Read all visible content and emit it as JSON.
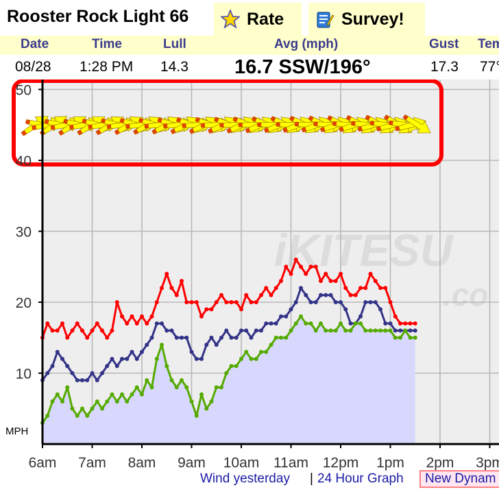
{
  "header": {
    "title": "Rooster Rock Light 66",
    "rate_label": "Rate",
    "survey_label": "Survey!",
    "star_icon": "star-icon",
    "survey_icon": "survey-icon"
  },
  "columns": {
    "date": "Date",
    "time": "Time",
    "lull": "Lull",
    "avg": "Avg (mph)",
    "gust": "Gust",
    "temp": "Tem"
  },
  "current": {
    "date": "08/28",
    "time": "1:28 PM",
    "lull": "14.3",
    "avg": "16.7 SSW/196°",
    "gust": "17.3",
    "temp": "77°"
  },
  "links": {
    "wind_yesterday": "Wind yesterday",
    "separator": "|",
    "graph_24h": "24 Hour Graph",
    "new_dynamic": "New Dynam"
  },
  "colors": {
    "gust": "#ff0000",
    "avg": "#333388",
    "lull": "#55aa00",
    "fill": "#d8d8ff",
    "arrow_fill": "#ffff00",
    "highlight_box": "#ff0000"
  },
  "chart_data": {
    "type": "line",
    "ylabel": "MPH",
    "ylim": [
      0,
      50
    ],
    "yticks": [
      10,
      20,
      30,
      40,
      50
    ],
    "ytick_labels": [
      "10",
      "20",
      "30",
      "40",
      "50"
    ],
    "xlim": [
      6,
      15
    ],
    "xticks": [
      6,
      7,
      8,
      9,
      10,
      11,
      12,
      13,
      14,
      15
    ],
    "xtick_labels": [
      "6am",
      "7am",
      "8am",
      "9am",
      "10am",
      "11am",
      "12pm",
      "1pm",
      "2pm",
      "3pm"
    ],
    "grid": true,
    "watermark": "iKITESURF.com",
    "direction_band_highlighted": true,
    "series": [
      {
        "key": "gust",
        "x": [
          6.0,
          6.1,
          6.2,
          6.3,
          6.4,
          6.5,
          6.6,
          6.7,
          6.8,
          6.9,
          7.0,
          7.1,
          7.2,
          7.3,
          7.4,
          7.5,
          7.6,
          7.7,
          7.8,
          7.9,
          8.0,
          8.1,
          8.2,
          8.3,
          8.4,
          8.5,
          8.6,
          8.7,
          8.8,
          8.9,
          9.0,
          9.1,
          9.2,
          9.3,
          9.4,
          9.5,
          9.6,
          9.7,
          9.8,
          9.9,
          10.0,
          10.1,
          10.2,
          10.3,
          10.4,
          10.5,
          10.6,
          10.7,
          10.8,
          10.9,
          11.0,
          11.1,
          11.2,
          11.3,
          11.4,
          11.5,
          11.6,
          11.7,
          11.8,
          11.9,
          12.0,
          12.1,
          12.2,
          12.3,
          12.4,
          12.5,
          12.6,
          12.7,
          12.8,
          12.9,
          13.0,
          13.1,
          13.2,
          13.3,
          13.4,
          13.5
        ],
        "values": [
          15,
          17,
          16,
          16,
          17,
          15,
          16,
          17,
          16,
          15,
          16,
          17,
          16,
          15,
          16,
          20,
          18,
          17,
          18,
          17,
          18,
          17,
          18,
          20,
          22,
          24,
          22,
          21,
          23,
          20,
          20,
          20,
          18,
          19,
          19,
          20,
          21,
          20,
          20,
          20,
          19,
          21,
          20,
          20,
          21,
          22,
          21,
          22,
          23,
          25,
          24,
          26,
          25,
          24,
          25,
          25,
          23,
          24,
          23,
          23,
          24,
          22,
          21,
          21,
          22,
          22,
          24,
          23,
          22,
          22,
          20,
          18,
          17,
          17,
          17,
          17
        ]
      },
      {
        "key": "avg",
        "x": [
          6.0,
          6.1,
          6.2,
          6.3,
          6.4,
          6.5,
          6.6,
          6.7,
          6.8,
          6.9,
          7.0,
          7.1,
          7.2,
          7.3,
          7.4,
          7.5,
          7.6,
          7.7,
          7.8,
          7.9,
          8.0,
          8.1,
          8.2,
          8.3,
          8.4,
          8.5,
          8.6,
          8.7,
          8.8,
          8.9,
          9.0,
          9.1,
          9.2,
          9.3,
          9.4,
          9.5,
          9.6,
          9.7,
          9.8,
          9.9,
          10.0,
          10.1,
          10.2,
          10.3,
          10.4,
          10.5,
          10.6,
          10.7,
          10.8,
          10.9,
          11.0,
          11.1,
          11.2,
          11.3,
          11.4,
          11.5,
          11.6,
          11.7,
          11.8,
          11.9,
          12.0,
          12.1,
          12.2,
          12.3,
          12.4,
          12.5,
          12.6,
          12.7,
          12.8,
          12.9,
          13.0,
          13.1,
          13.2,
          13.3,
          13.4,
          13.5
        ],
        "values": [
          9,
          10,
          11,
          13,
          12,
          11,
          10,
          9,
          9,
          9,
          10,
          9,
          10,
          11,
          12,
          11,
          12,
          12,
          13,
          12,
          13,
          14,
          15,
          17,
          17,
          16,
          16,
          15,
          15,
          15,
          13,
          12,
          12,
          14,
          15,
          14,
          15,
          16,
          15,
          15,
          16,
          16,
          15,
          16,
          16,
          17,
          17,
          17,
          18,
          18,
          19,
          20,
          22,
          21,
          20,
          20,
          21,
          21,
          21,
          20,
          20,
          19,
          17,
          17,
          18,
          20,
          20,
          20,
          19,
          17,
          17,
          16,
          16,
          16,
          16,
          16
        ]
      },
      {
        "key": "lull",
        "x": [
          6.0,
          6.1,
          6.2,
          6.3,
          6.4,
          6.5,
          6.6,
          6.7,
          6.8,
          6.9,
          7.0,
          7.1,
          7.2,
          7.3,
          7.4,
          7.5,
          7.6,
          7.7,
          7.8,
          7.9,
          8.0,
          8.1,
          8.2,
          8.3,
          8.4,
          8.5,
          8.6,
          8.7,
          8.8,
          8.9,
          9.0,
          9.1,
          9.2,
          9.3,
          9.4,
          9.5,
          9.6,
          9.7,
          9.8,
          9.9,
          10.0,
          10.1,
          10.2,
          10.3,
          10.4,
          10.5,
          10.6,
          10.7,
          10.8,
          10.9,
          11.0,
          11.1,
          11.2,
          11.3,
          11.4,
          11.5,
          11.6,
          11.7,
          11.8,
          11.9,
          12.0,
          12.1,
          12.2,
          12.3,
          12.4,
          12.5,
          12.6,
          12.7,
          12.8,
          12.9,
          13.0,
          13.1,
          13.2,
          13.3,
          13.4,
          13.5
        ],
        "values": [
          3,
          4,
          6,
          7,
          6,
          8,
          5,
          4,
          5,
          4,
          5,
          6,
          5,
          6,
          7,
          6,
          7,
          6,
          7,
          8,
          7,
          9,
          8,
          12,
          14,
          11,
          9,
          8,
          9,
          8,
          6,
          4,
          7,
          5,
          6,
          8,
          8,
          10,
          11,
          11,
          12,
          13,
          12,
          12,
          13,
          13,
          14,
          15,
          15,
          15,
          16,
          17,
          18,
          17,
          17,
          16,
          17,
          16,
          16,
          16,
          17,
          16,
          16,
          17,
          17,
          16,
          16,
          16,
          16,
          16,
          16,
          15,
          15,
          16,
          15,
          15
        ]
      }
    ],
    "direction_arrows_count": 62
  }
}
